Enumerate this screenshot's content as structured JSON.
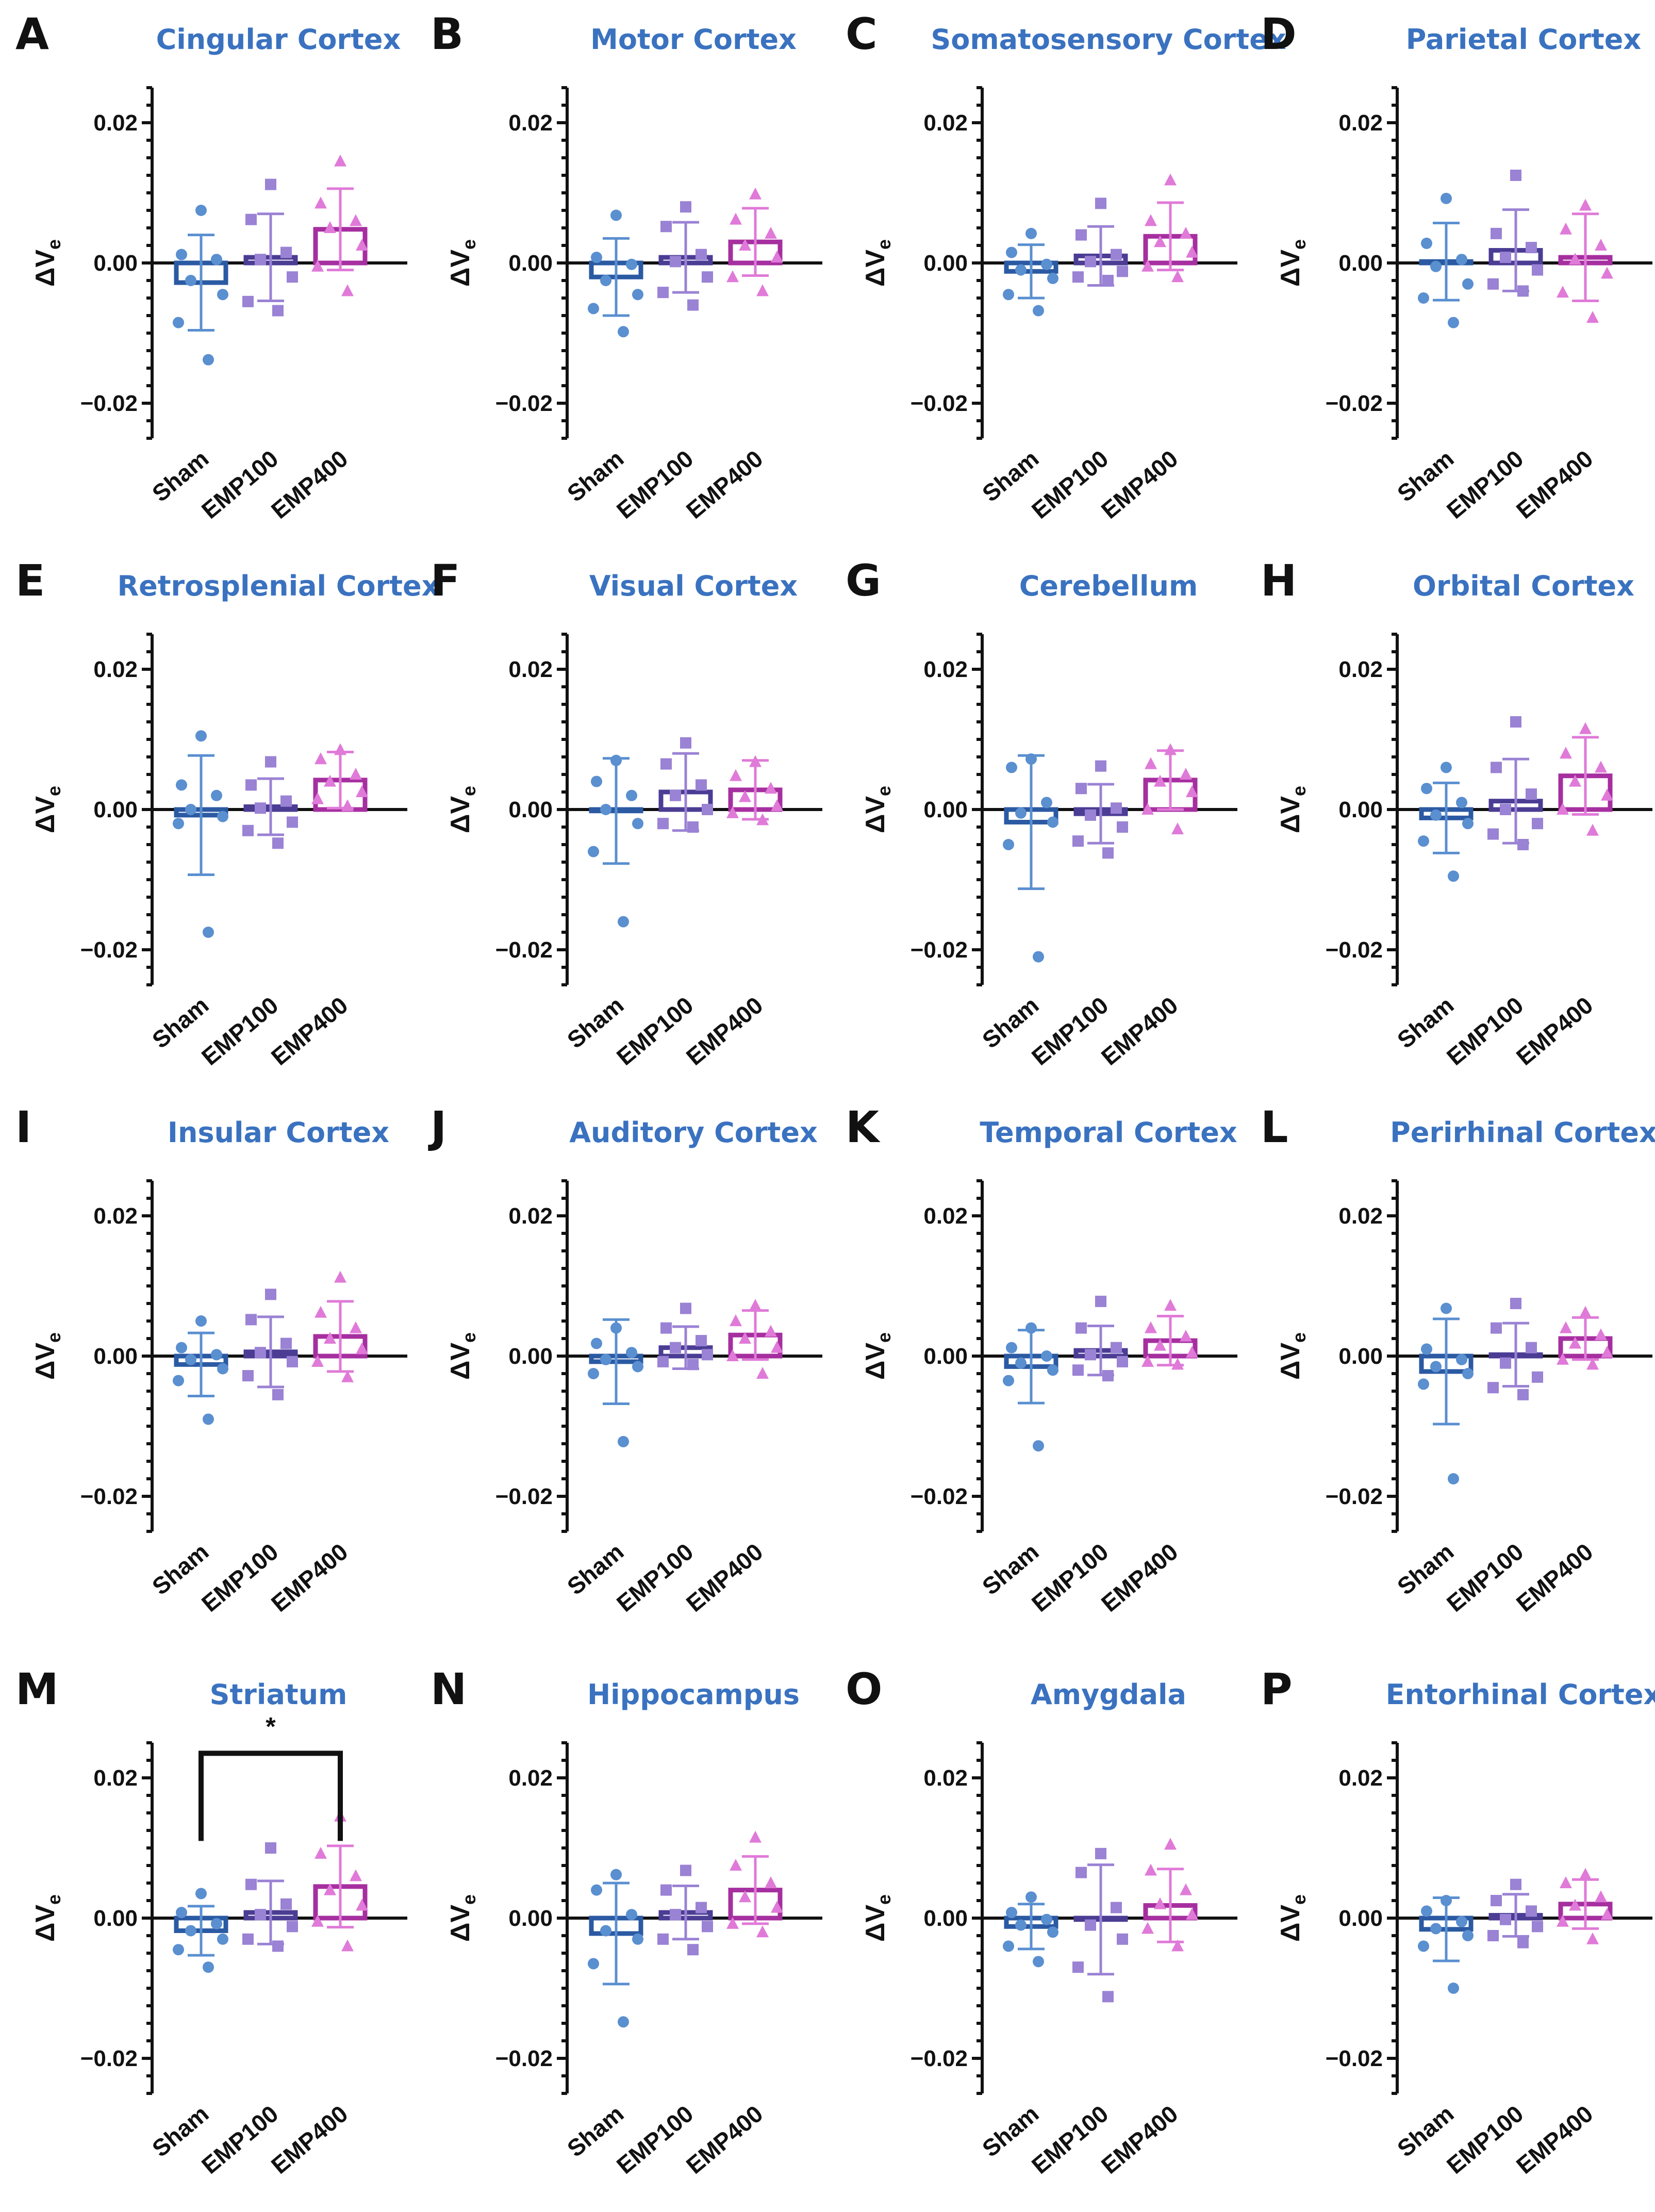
{
  "figure": {
    "group_colors": {
      "Sham": "#5a8fd0",
      "EMP100": "#9a82d4",
      "EMP400": "#e07ad8"
    },
    "bar_colors": {
      "Sham": "#2b5aa3",
      "EMP100": "#4b3c94",
      "EMP400": "#a62fa0"
    },
    "title_color": "#3a72c0",
    "marker_shapes": {
      "Sham": "circle",
      "EMP100": "square",
      "EMP400": "triangle"
    }
  },
  "chart_data": [
    {
      "type": "bar",
      "letter": "A",
      "title": "Cingular Cortex",
      "ylabel": "ΔV",
      "ylabel_sub": "e",
      "ylim": [
        -0.025,
        0.025
      ],
      "yticks": [
        -0.02,
        0.0,
        0.02
      ],
      "ytick_labels": [
        "−0.02",
        "0.00",
        "0.02"
      ],
      "categories": [
        "Sham",
        "EMP100",
        "EMP400"
      ],
      "means": [
        -0.0028,
        0.0008,
        0.0048
      ],
      "sd": [
        0.0068,
        0.0062,
        0.0058
      ],
      "points": [
        [
          0.0075,
          0.0012,
          0.0005,
          -0.0025,
          -0.0045,
          -0.0085,
          -0.0138
        ],
        [
          0.0112,
          0.0062,
          0.0015,
          0.0005,
          -0.002,
          -0.0055,
          -0.0068
        ],
        [
          0.0145,
          0.0085,
          0.006,
          0.005,
          0.0025,
          -0.0005,
          -0.004
        ]
      ]
    },
    {
      "type": "bar",
      "letter": "B",
      "title": "Motor Cortex",
      "ylabel": "ΔV",
      "ylabel_sub": "e",
      "ylim": [
        -0.025,
        0.025
      ],
      "yticks": [
        -0.02,
        0.0,
        0.02
      ],
      "ytick_labels": [
        "−0.02",
        "0.00",
        "0.02"
      ],
      "categories": [
        "Sham",
        "EMP100",
        "EMP400"
      ],
      "means": [
        -0.002,
        0.0008,
        0.003
      ],
      "sd": [
        0.0055,
        0.005,
        0.0048
      ],
      "points": [
        [
          0.0068,
          0.0008,
          -0.0002,
          -0.0025,
          -0.0045,
          -0.0065,
          -0.0098
        ],
        [
          0.008,
          0.0052,
          0.0012,
          0.0002,
          -0.002,
          -0.0042,
          -0.006
        ],
        [
          0.0098,
          0.0062,
          0.0042,
          0.0025,
          0.0008,
          -0.002,
          -0.004
        ]
      ]
    },
    {
      "type": "bar",
      "letter": "C",
      "title": "Somatosensory Cortex",
      "ylabel": "ΔV",
      "ylabel_sub": "e",
      "ylim": [
        -0.025,
        0.025
      ],
      "yticks": [
        -0.02,
        0.0,
        0.02
      ],
      "ytick_labels": [
        "−0.02",
        "0.00",
        "0.02"
      ],
      "categories": [
        "Sham",
        "EMP100",
        "EMP400"
      ],
      "means": [
        -0.0012,
        0.001,
        0.0038
      ],
      "sd": [
        0.0038,
        0.0042,
        0.0048
      ],
      "points": [
        [
          0.0042,
          0.0015,
          -0.0002,
          -0.001,
          -0.0022,
          -0.0045,
          -0.0068
        ],
        [
          0.0085,
          0.004,
          0.0012,
          0.0002,
          -0.0012,
          -0.002,
          -0.0025
        ],
        [
          0.0118,
          0.006,
          0.0042,
          0.003,
          0.0015,
          -0.0005,
          -0.002
        ]
      ]
    },
    {
      "type": "bar",
      "letter": "D",
      "title": "Parietal Cortex",
      "ylabel": "ΔV",
      "ylabel_sub": "e",
      "ylim": [
        -0.025,
        0.025
      ],
      "yticks": [
        -0.02,
        0.0,
        0.02
      ],
      "ytick_labels": [
        "−0.02",
        "0.00",
        "0.02"
      ],
      "categories": [
        "Sham",
        "EMP100",
        "EMP400"
      ],
      "means": [
        0.0002,
        0.0018,
        0.0008
      ],
      "sd": [
        0.0055,
        0.0058,
        0.0062
      ],
      "points": [
        [
          0.0092,
          0.0028,
          0.0005,
          -0.0005,
          -0.003,
          -0.005,
          -0.0085
        ],
        [
          0.0125,
          0.0042,
          0.0022,
          0.0008,
          -0.001,
          -0.003,
          -0.004
        ],
        [
          0.0082,
          0.0048,
          0.0025,
          0.0005,
          -0.0015,
          -0.0042,
          -0.0078
        ]
      ]
    },
    {
      "type": "bar",
      "letter": "E",
      "title": "Retrosplenial Cortex",
      "ylabel": "ΔV",
      "ylabel_sub": "e",
      "ylim": [
        -0.025,
        0.025
      ],
      "yticks": [
        -0.02,
        0.0,
        0.02
      ],
      "ytick_labels": [
        "−0.02",
        "0.00",
        "0.02"
      ],
      "categories": [
        "Sham",
        "EMP100",
        "EMP400"
      ],
      "means": [
        -0.0008,
        0.0004,
        0.0042
      ],
      "sd": [
        0.0085,
        0.004,
        0.004
      ],
      "points": [
        [
          0.0105,
          0.0035,
          0.002,
          0.0,
          -0.001,
          -0.002,
          -0.0175
        ],
        [
          0.0068,
          0.0035,
          0.0012,
          0.0002,
          -0.0018,
          -0.003,
          -0.0048
        ],
        [
          0.0085,
          0.0072,
          0.005,
          0.004,
          0.0025,
          0.0015,
          0.0005
        ]
      ]
    },
    {
      "type": "bar",
      "letter": "F",
      "title": "Visual Cortex",
      "ylabel": "ΔV",
      "ylabel_sub": "e",
      "ylim": [
        -0.025,
        0.025
      ],
      "yticks": [
        -0.02,
        0.0,
        0.02
      ],
      "ytick_labels": [
        "−0.02",
        "0.00",
        "0.02"
      ],
      "categories": [
        "Sham",
        "EMP100",
        "EMP400"
      ],
      "means": [
        -0.0002,
        0.0025,
        0.0028
      ],
      "sd": [
        0.0075,
        0.0055,
        0.0042
      ],
      "points": [
        [
          0.007,
          0.004,
          0.002,
          0.0,
          -0.002,
          -0.006,
          -0.016
        ],
        [
          0.0095,
          0.0065,
          0.0035,
          0.002,
          0.0,
          -0.002,
          -0.0025
        ],
        [
          0.0068,
          0.0048,
          0.003,
          0.0018,
          0.0005,
          -0.0005,
          -0.0015
        ]
      ]
    },
    {
      "type": "bar",
      "letter": "G",
      "title": "Cerebellum",
      "ylabel": "ΔV",
      "ylabel_sub": "e",
      "ylim": [
        -0.025,
        0.025
      ],
      "yticks": [
        -0.02,
        0.0,
        0.02
      ],
      "ytick_labels": [
        "−0.02",
        "0.00",
        "0.02"
      ],
      "categories": [
        "Sham",
        "EMP100",
        "EMP400"
      ],
      "means": [
        -0.0018,
        -0.0006,
        0.0042
      ],
      "sd": [
        0.0095,
        0.0042,
        0.0042
      ],
      "points": [
        [
          0.0072,
          0.006,
          0.001,
          -0.0005,
          -0.0018,
          -0.005,
          -0.021
        ],
        [
          0.0062,
          0.003,
          0.0002,
          -0.0008,
          -0.0025,
          -0.0045,
          -0.0062
        ],
        [
          0.0085,
          0.0065,
          0.005,
          0.004,
          0.0025,
          0.0,
          -0.0028
        ]
      ]
    },
    {
      "type": "bar",
      "letter": "H",
      "title": "Orbital Cortex",
      "ylabel": "ΔV",
      "ylabel_sub": "e",
      "ylim": [
        -0.025,
        0.025
      ],
      "yticks": [
        -0.02,
        0.0,
        0.02
      ],
      "ytick_labels": [
        "−0.02",
        "0.00",
        "0.02"
      ],
      "categories": [
        "Sham",
        "EMP100",
        "EMP400"
      ],
      "means": [
        -0.0012,
        0.0012,
        0.0048
      ],
      "sd": [
        0.005,
        0.006,
        0.0055
      ],
      "points": [
        [
          0.006,
          0.003,
          0.001,
          -0.0008,
          -0.002,
          -0.0045,
          -0.0095
        ],
        [
          0.0125,
          0.006,
          0.0022,
          0.0,
          -0.002,
          -0.0035,
          -0.005
        ],
        [
          0.0115,
          0.008,
          0.006,
          0.004,
          0.002,
          0.0,
          -0.003
        ]
      ]
    },
    {
      "type": "bar",
      "letter": "I",
      "title": "Insular Cortex",
      "ylabel": "ΔV",
      "ylabel_sub": "e",
      "ylim": [
        -0.025,
        0.025
      ],
      "yticks": [
        -0.02,
        0.0,
        0.02
      ],
      "ytick_labels": [
        "−0.02",
        "0.00",
        "0.02"
      ],
      "categories": [
        "Sham",
        "EMP100",
        "EMP400"
      ],
      "means": [
        -0.0012,
        0.0006,
        0.0028
      ],
      "sd": [
        0.0045,
        0.005,
        0.005
      ],
      "points": [
        [
          0.005,
          0.0012,
          0.0002,
          -0.0005,
          -0.0018,
          -0.0035,
          -0.009
        ],
        [
          0.0088,
          0.0052,
          0.0018,
          0.0005,
          -0.0008,
          -0.0028,
          -0.0055
        ],
        [
          0.0112,
          0.0062,
          0.004,
          0.0025,
          0.001,
          -0.0008,
          -0.003
        ]
      ]
    },
    {
      "type": "bar",
      "letter": "J",
      "title": "Auditory Cortex",
      "ylabel": "ΔV",
      "ylabel_sub": "e",
      "ylim": [
        -0.025,
        0.025
      ],
      "yticks": [
        -0.02,
        0.0,
        0.02
      ],
      "ytick_labels": [
        "−0.02",
        "0.00",
        "0.02"
      ],
      "categories": [
        "Sham",
        "EMP100",
        "EMP400"
      ],
      "means": [
        -0.0008,
        0.0012,
        0.003
      ],
      "sd": [
        0.006,
        0.003,
        0.0035
      ],
      "points": [
        [
          0.004,
          0.0018,
          0.0005,
          -0.0005,
          -0.0015,
          -0.0025,
          -0.0122
        ],
        [
          0.0068,
          0.004,
          0.0022,
          0.0012,
          0.0002,
          -0.0008,
          -0.0012
        ],
        [
          0.0072,
          0.005,
          0.0035,
          0.0025,
          0.0012,
          0.0,
          -0.0025
        ]
      ]
    },
    {
      "type": "bar",
      "letter": "K",
      "title": "Temporal Cortex",
      "ylabel": "ΔV",
      "ylabel_sub": "e",
      "ylim": [
        -0.025,
        0.025
      ],
      "yticks": [
        -0.02,
        0.0,
        0.02
      ],
      "ytick_labels": [
        "−0.02",
        "0.00",
        "0.02"
      ],
      "categories": [
        "Sham",
        "EMP100",
        "EMP400"
      ],
      "means": [
        -0.0015,
        0.0008,
        0.0022
      ],
      "sd": [
        0.0052,
        0.0035,
        0.0035
      ],
      "points": [
        [
          0.004,
          0.0012,
          0.0,
          -0.001,
          -0.002,
          -0.0035,
          -0.0128
        ],
        [
          0.0078,
          0.004,
          0.0012,
          0.0002,
          -0.0008,
          -0.002,
          -0.0028
        ],
        [
          0.0072,
          0.004,
          0.0028,
          0.0015,
          0.0005,
          -0.0008,
          -0.0012
        ]
      ]
    },
    {
      "type": "bar",
      "letter": "L",
      "title": "Perirhinal Cortex",
      "ylabel": "ΔV",
      "ylabel_sub": "e",
      "ylim": [
        -0.025,
        0.025
      ],
      "yticks": [
        -0.02,
        0.0,
        0.02
      ],
      "ytick_labels": [
        "−0.02",
        "0.00",
        "0.02"
      ],
      "categories": [
        "Sham",
        "EMP100",
        "EMP400"
      ],
      "means": [
        -0.0022,
        0.0002,
        0.0025
      ],
      "sd": [
        0.0075,
        0.0045,
        0.003
      ],
      "points": [
        [
          0.0068,
          0.001,
          -0.0005,
          -0.0015,
          -0.0025,
          -0.004,
          -0.0175
        ],
        [
          0.0075,
          0.004,
          0.0012,
          -0.001,
          -0.003,
          -0.0045,
          -0.0055
        ],
        [
          0.0062,
          0.004,
          0.003,
          0.0018,
          0.0005,
          -0.0005,
          -0.0012
        ]
      ]
    },
    {
      "type": "bar",
      "letter": "M",
      "title": "Striatum",
      "ylabel": "ΔV",
      "ylabel_sub": "e",
      "ylim": [
        -0.025,
        0.025
      ],
      "yticks": [
        -0.02,
        0.0,
        0.02
      ],
      "ytick_labels": [
        "−0.02",
        "0.00",
        "0.02"
      ],
      "categories": [
        "Sham",
        "EMP100",
        "EMP400"
      ],
      "means": [
        -0.0018,
        0.0008,
        0.0045
      ],
      "sd": [
        0.0035,
        0.0045,
        0.0058
      ],
      "points": [
        [
          0.0035,
          0.0008,
          -0.0008,
          -0.0018,
          -0.003,
          -0.0045,
          -0.007
        ],
        [
          0.01,
          0.0048,
          0.002,
          0.0005,
          -0.0012,
          -0.003,
          -0.004
        ],
        [
          0.0145,
          0.0092,
          0.006,
          0.004,
          0.0018,
          -0.0005,
          -0.004
        ]
      ],
      "significance": {
        "from": "Sham",
        "to": "EMP400",
        "label": "*"
      }
    },
    {
      "type": "bar",
      "letter": "N",
      "title": "Hippocampus",
      "ylabel": "ΔV",
      "ylabel_sub": "e",
      "ylim": [
        -0.025,
        0.025
      ],
      "yticks": [
        -0.02,
        0.0,
        0.02
      ],
      "ytick_labels": [
        "−0.02",
        "0.00",
        "0.02"
      ],
      "categories": [
        "Sham",
        "EMP100",
        "EMP400"
      ],
      "means": [
        -0.0022,
        0.0008,
        0.004
      ],
      "sd": [
        0.0072,
        0.0038,
        0.0048
      ],
      "points": [
        [
          0.0062,
          0.004,
          0.0005,
          -0.0018,
          -0.003,
          -0.0065,
          -0.0148
        ],
        [
          0.0068,
          0.004,
          0.0015,
          0.0005,
          -0.0012,
          -0.003,
          -0.0045
        ],
        [
          0.0115,
          0.0075,
          0.005,
          0.003,
          0.0015,
          -0.0008,
          -0.002
        ]
      ]
    },
    {
      "type": "bar",
      "letter": "O",
      "title": "Amygdala",
      "ylabel": "ΔV",
      "ylabel_sub": "e",
      "ylim": [
        -0.025,
        0.025
      ],
      "yticks": [
        -0.02,
        0.0,
        0.02
      ],
      "ytick_labels": [
        "−0.02",
        "0.00",
        "0.02"
      ],
      "categories": [
        "Sham",
        "EMP100",
        "EMP400"
      ],
      "means": [
        -0.0012,
        -0.0002,
        0.0018
      ],
      "sd": [
        0.0032,
        0.0078,
        0.0052
      ],
      "points": [
        [
          0.003,
          0.0008,
          -0.0002,
          -0.001,
          -0.002,
          -0.004,
          -0.0062
        ],
        [
          0.0092,
          0.0065,
          0.0015,
          -0.001,
          -0.003,
          -0.007,
          -0.0112
        ],
        [
          0.0105,
          0.0068,
          0.004,
          0.002,
          0.0005,
          -0.0015,
          -0.004
        ]
      ]
    },
    {
      "type": "bar",
      "letter": "P",
      "title": "Entorhinal Cortex",
      "ylabel": "ΔV",
      "ylabel_sub": "e",
      "ylim": [
        -0.025,
        0.025
      ],
      "yticks": [
        -0.02,
        0.0,
        0.02
      ],
      "ytick_labels": [
        "−0.02",
        "0.00",
        "0.02"
      ],
      "categories": [
        "Sham",
        "EMP100",
        "EMP400"
      ],
      "means": [
        -0.0016,
        0.0004,
        0.002
      ],
      "sd": [
        0.0045,
        0.003,
        0.0035
      ],
      "points": [
        [
          0.0025,
          0.001,
          -0.0005,
          -0.0015,
          -0.0025,
          -0.004,
          -0.01
        ],
        [
          0.0048,
          0.0025,
          0.001,
          -0.0002,
          -0.0012,
          -0.0025,
          -0.0035
        ],
        [
          0.0062,
          0.005,
          0.003,
          0.0018,
          0.0005,
          -0.0005,
          -0.003
        ]
      ]
    }
  ]
}
